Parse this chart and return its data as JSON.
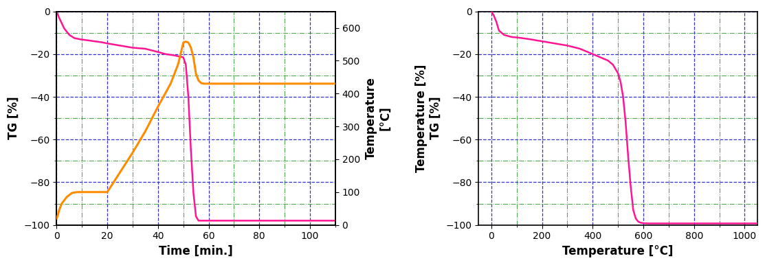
{
  "chart1": {
    "xlabel": "Time [min.]",
    "ylabel_left": "TG [%]",
    "ylabel_right": "Temperature\n[°C]",
    "xlim": [
      0,
      110
    ],
    "ylim_left": [
      -100,
      0
    ],
    "ylim_right": [
      0,
      650
    ],
    "xticks": [
      0,
      20,
      40,
      60,
      80,
      100
    ],
    "yticks_left": [
      -100,
      -80,
      -60,
      -40,
      -20,
      0
    ],
    "yticks_right": [
      0,
      100,
      200,
      300,
      400,
      500,
      600
    ],
    "pink_color": "#FF1493",
    "orange_color": "#FF8C00",
    "grid_blue_color": "#3333CC",
    "grid_green_color": "#339933"
  },
  "chart2": {
    "xlabel": "Temperature [°C]",
    "ylabel_line1": "Temperature [%]",
    "ylabel_line2": "TG [%]",
    "xlim": [
      -50,
      1050
    ],
    "ylim": [
      -100,
      0
    ],
    "xticks": [
      0,
      200,
      400,
      600,
      800,
      1000
    ],
    "yticks": [
      -100,
      -80,
      -60,
      -40,
      -20,
      0
    ],
    "pink_color": "#FF1493",
    "grid_blue_color": "#3333CC",
    "grid_green_color": "#339933"
  },
  "background_color": "#FFFFFF",
  "label_fontsize": 12,
  "tick_fontsize": 10
}
